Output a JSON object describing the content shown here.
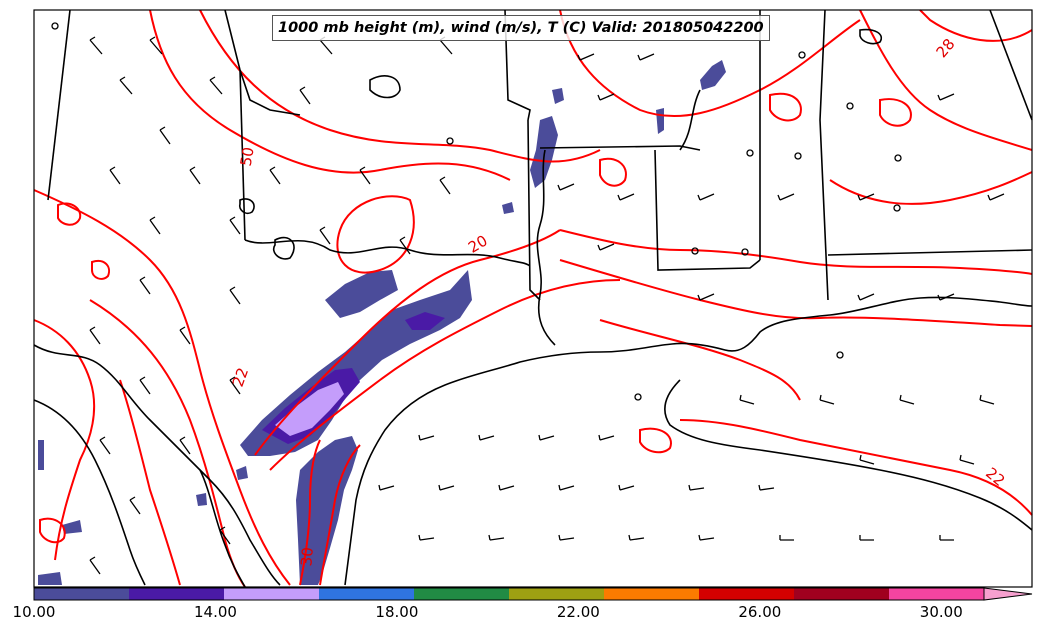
{
  "title": "1000 mb height (m), wind (m/s), T (C) Valid: 201805042200",
  "colorbar": {
    "ticks": [
      "10.00",
      "14.00",
      "18.00",
      "22.00",
      "26.00",
      "30.00"
    ],
    "min": 10,
    "max": 32,
    "colors": [
      "#4b4c9a",
      "#4a1aa6",
      "#c49dfb",
      "#2f74e0",
      "#218b44",
      "#9ea012",
      "#fb7b00",
      "#d40000",
      "#a0001f",
      "#f444a0"
    ],
    "extend_color": "#f7a0cf"
  },
  "contour_labels": [
    "28",
    "20",
    "22",
    "22",
    "30",
    "50"
  ],
  "colors": {
    "temperature_contour": "#ff0000",
    "boundary": "#000000",
    "shading_low": "#4b4c9a",
    "shading_mid": "#c49dfb"
  }
}
